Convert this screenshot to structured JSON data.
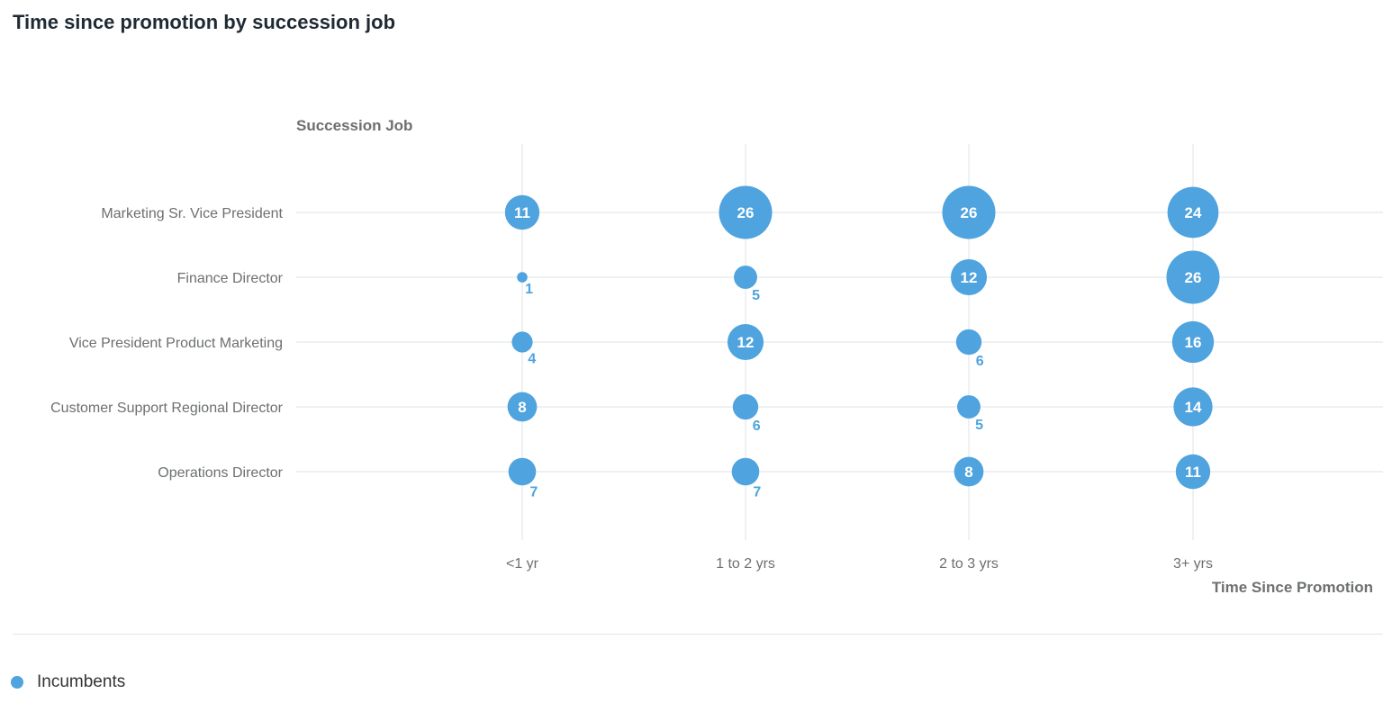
{
  "page": {
    "title": "Time since promotion by succession job"
  },
  "chart_data": {
    "type": "bubble",
    "title": "Time since promotion by succession job",
    "ylabel": "Succession Job",
    "xlabel": "Time Since Promotion",
    "y_categories": [
      "Marketing Sr. Vice President",
      "Finance Director",
      "Vice President Product Marketing",
      "Customer Support Regional Director",
      "Operations Director"
    ],
    "x_categories": [
      "<1 yr",
      "1 to 2 yrs",
      "2 to 3 yrs",
      "3+ yrs"
    ],
    "grid": true,
    "legend_position": "bottom-left",
    "series": [
      {
        "name": "Incumbents",
        "color": "#4fa3de",
        "values": [
          [
            11,
            26,
            26,
            24
          ],
          [
            1,
            5,
            12,
            26
          ],
          [
            4,
            12,
            6,
            16
          ],
          [
            8,
            6,
            5,
            14
          ],
          [
            7,
            7,
            8,
            11
          ]
        ]
      }
    ]
  },
  "legend": {
    "items": [
      {
        "label": "Incumbents",
        "color": "#4fa3de"
      }
    ]
  }
}
